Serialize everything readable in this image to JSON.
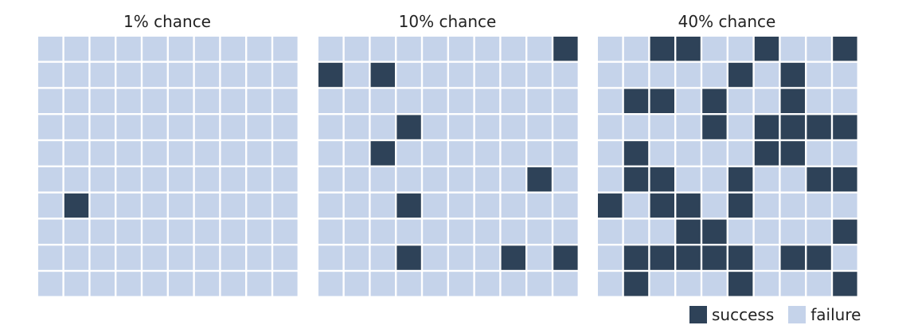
{
  "chart_data": {
    "type": "heatmap",
    "grid_rows": 10,
    "grid_cols": 10,
    "colors": {
      "success": "#2e4258",
      "failure": "#c5d3ea"
    },
    "legend": {
      "placement": "bottom-right",
      "entries": [
        {
          "key": "success",
          "label": "success"
        },
        {
          "key": "failure",
          "label": "failure"
        }
      ]
    },
    "panels": [
      {
        "title": "1% chance",
        "probability": 0.01,
        "success_cells": [
          [
            6,
            1
          ]
        ]
      },
      {
        "title": "10% chance",
        "probability": 0.1,
        "success_cells": [
          [
            0,
            9
          ],
          [
            1,
            0
          ],
          [
            1,
            2
          ],
          [
            3,
            3
          ],
          [
            4,
            2
          ],
          [
            5,
            8
          ],
          [
            6,
            3
          ],
          [
            8,
            3
          ],
          [
            8,
            7
          ],
          [
            8,
            9
          ]
        ]
      },
      {
        "title": "40% chance",
        "probability": 0.4,
        "success_cells": [
          [
            0,
            2
          ],
          [
            0,
            3
          ],
          [
            0,
            6
          ],
          [
            0,
            9
          ],
          [
            1,
            5
          ],
          [
            1,
            7
          ],
          [
            2,
            1
          ],
          [
            2,
            2
          ],
          [
            2,
            4
          ],
          [
            2,
            7
          ],
          [
            3,
            4
          ],
          [
            3,
            6
          ],
          [
            3,
            7
          ],
          [
            3,
            8
          ],
          [
            3,
            9
          ],
          [
            4,
            1
          ],
          [
            4,
            6
          ],
          [
            4,
            7
          ],
          [
            5,
            1
          ],
          [
            5,
            2
          ],
          [
            5,
            5
          ],
          [
            5,
            8
          ],
          [
            5,
            9
          ],
          [
            6,
            0
          ],
          [
            6,
            2
          ],
          [
            6,
            3
          ],
          [
            6,
            5
          ],
          [
            7,
            3
          ],
          [
            7,
            4
          ],
          [
            7,
            9
          ],
          [
            8,
            1
          ],
          [
            8,
            2
          ],
          [
            8,
            3
          ],
          [
            8,
            4
          ],
          [
            8,
            5
          ],
          [
            8,
            7
          ],
          [
            8,
            8
          ],
          [
            9,
            1
          ],
          [
            9,
            5
          ],
          [
            9,
            9
          ]
        ]
      }
    ]
  }
}
